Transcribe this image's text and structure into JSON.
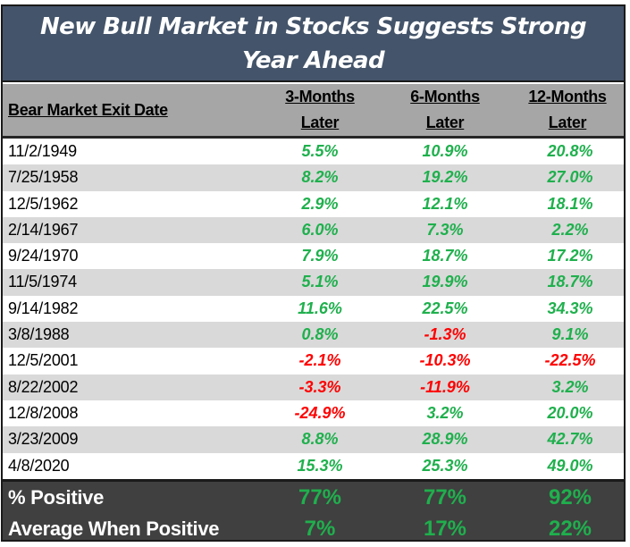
{
  "title": "New Bull Market in Stocks Suggests Strong Year Ahead",
  "colors": {
    "title_bg": "#44546a",
    "header_bg": "#a6a6a6",
    "alt_row_bg": "#d9d9d9",
    "footer_bg": "#404040",
    "positive": "#1fb04d",
    "negative": "#ff0000"
  },
  "headers": {
    "date": "Bear Market Exit Date",
    "c1_line1": "3-Months",
    "c1_line2": "Later",
    "c2_line1": "6-Months",
    "c2_line2": "Later",
    "c3_line1": "12-Months",
    "c3_line2": "Later"
  },
  "rows": [
    {
      "date": "11/2/1949",
      "m3": "5.5%",
      "m6": "10.9%",
      "m12": "20.8%"
    },
    {
      "date": "7/25/1958",
      "m3": "8.2%",
      "m6": "19.2%",
      "m12": "27.0%"
    },
    {
      "date": "12/5/1962",
      "m3": "2.9%",
      "m6": "12.1%",
      "m12": "18.1%"
    },
    {
      "date": "2/14/1967",
      "m3": "6.0%",
      "m6": "7.3%",
      "m12": "2.2%"
    },
    {
      "date": "9/24/1970",
      "m3": "7.9%",
      "m6": "18.7%",
      "m12": "17.2%"
    },
    {
      "date": "11/5/1974",
      "m3": "5.1%",
      "m6": "19.9%",
      "m12": "18.7%"
    },
    {
      "date": "9/14/1982",
      "m3": "11.6%",
      "m6": "22.5%",
      "m12": "34.3%"
    },
    {
      "date": "3/8/1988",
      "m3": "0.8%",
      "m6": "-1.3%",
      "m12": "9.1%"
    },
    {
      "date": "12/5/2001",
      "m3": "-2.1%",
      "m6": "-10.3%",
      "m12": "-22.5%"
    },
    {
      "date": "8/22/2002",
      "m3": "-3.3%",
      "m6": "-11.9%",
      "m12": "3.2%"
    },
    {
      "date": "12/8/2008",
      "m3": "-24.9%",
      "m6": "3.2%",
      "m12": "20.0%"
    },
    {
      "date": "3/23/2009",
      "m3": "8.8%",
      "m6": "28.9%",
      "m12": "42.7%"
    },
    {
      "date": "4/8/2020",
      "m3": "15.3%",
      "m6": "25.3%",
      "m12": "49.0%"
    }
  ],
  "summary": [
    {
      "label": "% Positive",
      "m3": "77%",
      "m6": "77%",
      "m12": "92%"
    },
    {
      "label": "Average When Positive",
      "m3": "7%",
      "m6": "17%",
      "m12": "22%"
    }
  ]
}
